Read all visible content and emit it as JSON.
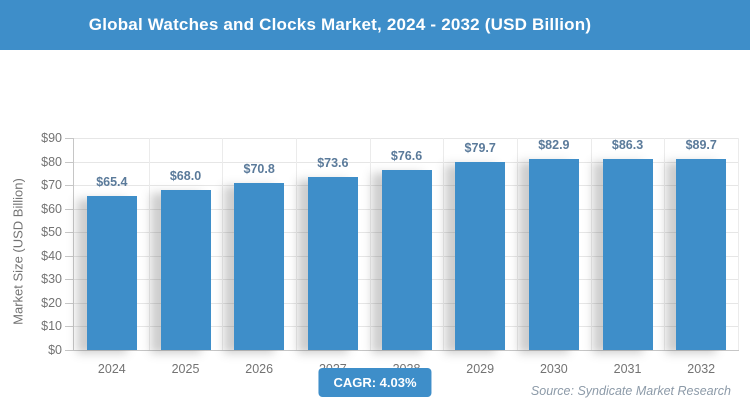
{
  "header": {
    "title": "Global Watches and Clocks Market, 2024 - 2032 (USD Billion)"
  },
  "chart_data": {
    "type": "bar",
    "title": "Global Watches and Clocks Market, 2024 - 2032 (USD Billion)",
    "categories": [
      "2024",
      "2025",
      "2026",
      "2027",
      "2028",
      "2029",
      "2030",
      "2031",
      "2032"
    ],
    "values": [
      65.4,
      68.0,
      70.8,
      73.6,
      76.6,
      79.7,
      82.9,
      86.3,
      89.7
    ],
    "value_labels": [
      "$65.4",
      "$68.0",
      "$70.8",
      "$73.6",
      "$76.6",
      "$79.7",
      "$82.9",
      "$86.3",
      "$89.7"
    ],
    "xlabel": "",
    "ylabel": "Market Size (USD Billion)",
    "ylim": [
      0,
      90
    ],
    "ytick_step": 10,
    "ytick_labels": [
      "$0",
      "$10",
      "$20",
      "$30",
      "$40",
      "$50",
      "$60",
      "$70",
      "$80",
      "$90"
    ],
    "grid": "horizontal gridlines every $10 plus vertical category-boundary gridlines",
    "legend": "none",
    "bar_color": "#3e8ec9"
  },
  "footer": {
    "cagr_label": "CAGR: 4.03%",
    "source": "Source: Syndicate Market Research"
  },
  "colors": {
    "accent_blue": "#3e8ec9",
    "data_label": "#5a7a9a",
    "axis_text": "#737373",
    "gridline": "#e6e6e6",
    "axis_line": "#c6c6c6",
    "source_text": "#8c9aa8"
  }
}
